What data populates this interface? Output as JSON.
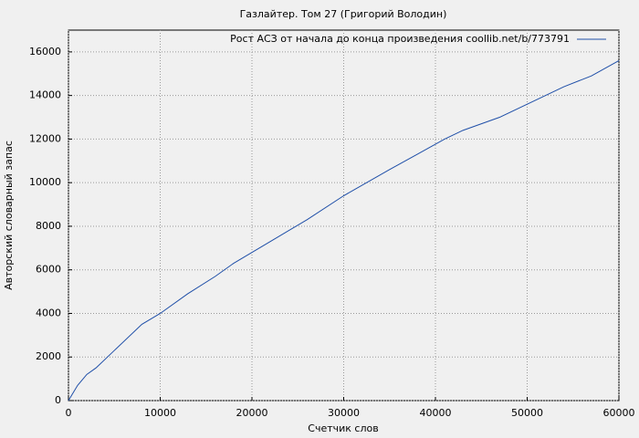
{
  "chart_data": {
    "type": "line",
    "title": "Газлайтер. Том 27 (Григорий Володин)",
    "x_label": "Счетчик слов",
    "y_label": "Авторский словарный запас",
    "x": [
      0,
      1000,
      2000,
      3000,
      5000,
      8000,
      10000,
      13000,
      16000,
      18000,
      22000,
      26000,
      30000,
      35000,
      38000,
      41000,
      43000,
      47000,
      50000,
      54000,
      57000,
      60000
    ],
    "series": [
      {
        "name": "Рост АСЗ от начала до конца произведения coollib.net/b/773791",
        "color": "#1f4fa8",
        "values": [
          0,
          700,
          1200,
          1500,
          2300,
          3500,
          4000,
          4900,
          5700,
          6300,
          7300,
          8300,
          9400,
          10600,
          11300,
          12000,
          12400,
          13000,
          13600,
          14400,
          14900,
          15600
        ]
      }
    ],
    "xlim": [
      0,
      60000
    ],
    "ylim": [
      0,
      17000
    ],
    "xticks": [
      0,
      10000,
      20000,
      30000,
      40000,
      50000,
      60000
    ],
    "yticks": [
      0,
      2000,
      4000,
      6000,
      8000,
      10000,
      12000,
      14000,
      16000
    ],
    "grid": true,
    "legend": "top-right"
  }
}
